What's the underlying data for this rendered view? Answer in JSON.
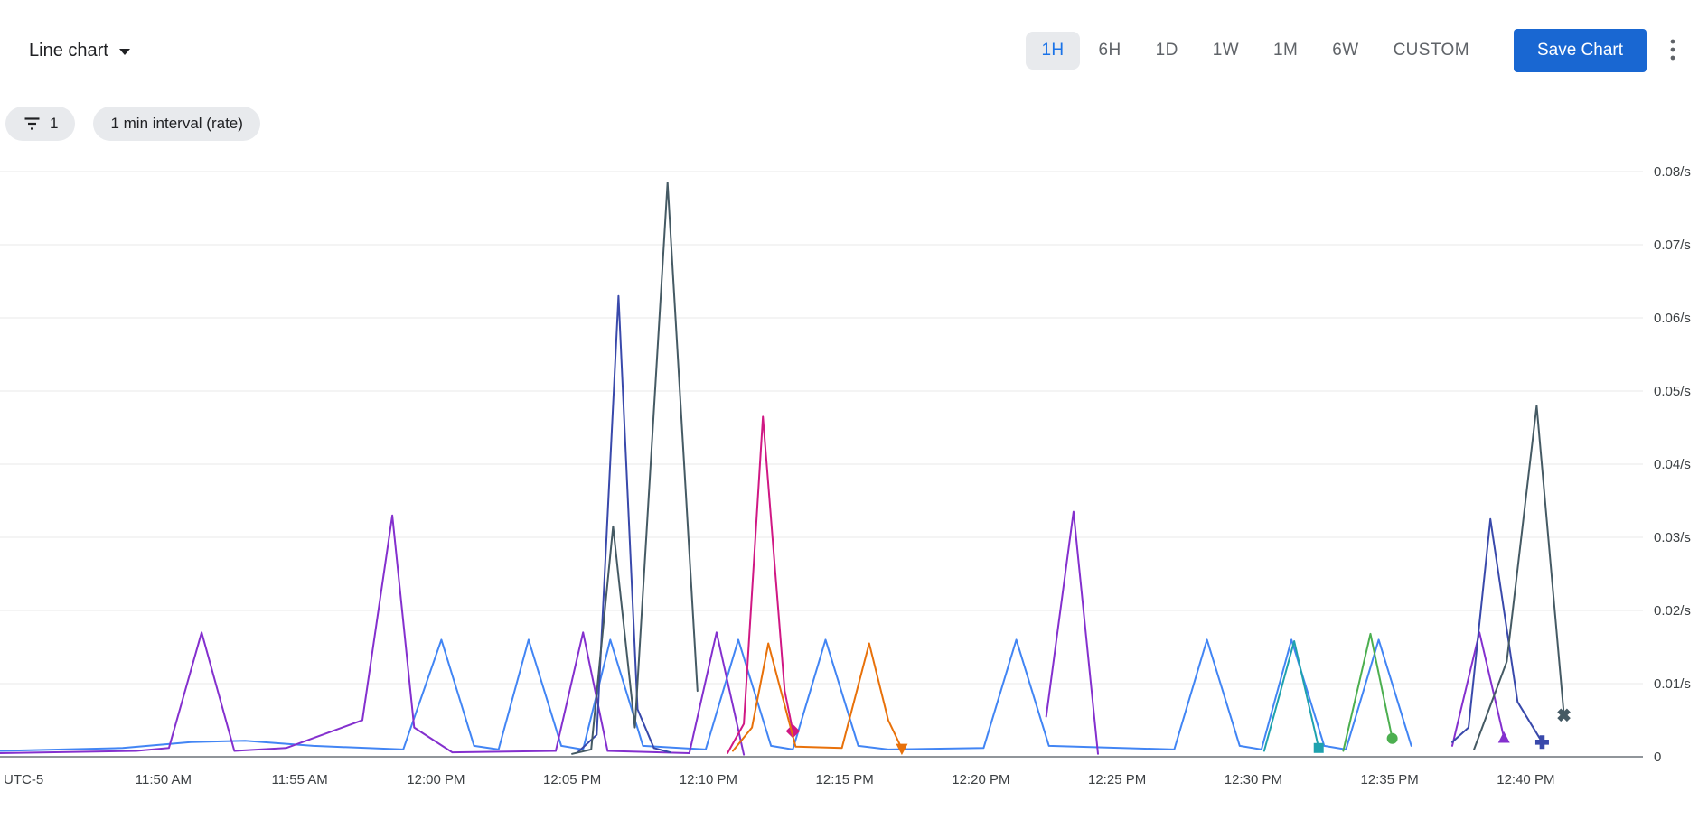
{
  "header": {
    "chart_type_label": "Line chart",
    "time_ranges": [
      "1H",
      "6H",
      "1D",
      "1W",
      "1M",
      "6W",
      "CUSTOM"
    ],
    "selected_range": "1H",
    "save_button_label": "Save Chart"
  },
  "filters": {
    "filter_count": "1",
    "interval_label": "1 min interval (rate)"
  },
  "colors": {
    "accent_blue": "#1A73E8",
    "save_button_bg": "#1967D2",
    "chip_bg": "#E8EAED",
    "grid_line": "#E8E8E8",
    "axis_line": "#80868B",
    "tick_text": "#3C4043"
  },
  "chart_data": {
    "type": "line",
    "title": "",
    "legend": "none",
    "grid": true,
    "x_axis": {
      "timezone_label": "UTC-5",
      "unit": "minutes after 11:45 AM",
      "domain_minutes": [
        -1,
        59.3
      ],
      "ticks": [
        {
          "t": 5,
          "label": "11:50 AM"
        },
        {
          "t": 10,
          "label": "11:55 AM"
        },
        {
          "t": 15,
          "label": "12:00 PM"
        },
        {
          "t": 20,
          "label": "12:05 PM"
        },
        {
          "t": 25,
          "label": "12:10 PM"
        },
        {
          "t": 30,
          "label": "12:15 PM"
        },
        {
          "t": 35,
          "label": "12:20 PM"
        },
        {
          "t": 40,
          "label": "12:25 PM"
        },
        {
          "t": 45,
          "label": "12:30 PM"
        },
        {
          "t": 50,
          "label": "12:35 PM"
        },
        {
          "t": 55,
          "label": "12:40 PM"
        }
      ]
    },
    "y_axis": {
      "unit": "/s",
      "domain": [
        0,
        0.08
      ],
      "ticks": [
        {
          "v": 0,
          "label": "0"
        },
        {
          "v": 0.01,
          "label": "0.01/s"
        },
        {
          "v": 0.02,
          "label": "0.02/s"
        },
        {
          "v": 0.03,
          "label": "0.03/s"
        },
        {
          "v": 0.04,
          "label": "0.04/s"
        },
        {
          "v": 0.05,
          "label": "0.05/s"
        },
        {
          "v": 0.06,
          "label": "0.06/s"
        },
        {
          "v": 0.07,
          "label": "0.07/s"
        },
        {
          "v": 0.08,
          "label": "0.08/s"
        }
      ]
    },
    "series": [
      {
        "name": "blue",
        "color": "#4285F4",
        "end_marker": null,
        "segments": [
          [
            [
              -1,
              0.0008
            ],
            [
              3.5,
              0.0012
            ],
            [
              6,
              0.002
            ],
            [
              8,
              0.0022
            ],
            [
              10.5,
              0.0015
            ],
            [
              13.8,
              0.001
            ],
            [
              15.2,
              0.016
            ],
            [
              16.4,
              0.0015
            ],
            [
              17.3,
              0.001
            ],
            [
              18.4,
              0.016
            ],
            [
              19.6,
              0.0015
            ],
            [
              20.4,
              0.001
            ],
            [
              21.4,
              0.016
            ],
            [
              22.6,
              0.0015
            ],
            [
              24.9,
              0.001
            ],
            [
              26.1,
              0.016
            ],
            [
              27.3,
              0.0015
            ],
            [
              28.1,
              0.001
            ],
            [
              29.3,
              0.016
            ],
            [
              30.5,
              0.0015
            ],
            [
              31.6,
              0.001
            ],
            [
              35.1,
              0.0012
            ],
            [
              36.3,
              0.016
            ],
            [
              37.5,
              0.0015
            ],
            [
              42.1,
              0.001
            ],
            [
              43.3,
              0.016
            ],
            [
              44.5,
              0.0015
            ],
            [
              45.3,
              0.001
            ],
            [
              46.4,
              0.016
            ],
            [
              47.6,
              0.0015
            ],
            [
              48.4,
              0.001
            ],
            [
              49.6,
              0.016
            ],
            [
              50.8,
              0.0015
            ]
          ]
        ]
      },
      {
        "name": "purple",
        "color": "#8430CE",
        "end_marker": "triangle-up",
        "segments": [
          [
            [
              -1,
              0.0005
            ],
            [
              4,
              0.0008
            ],
            [
              5.2,
              0.0012
            ],
            [
              6.4,
              0.017
            ],
            [
              7.6,
              0.0008
            ],
            [
              9.5,
              0.0012
            ],
            [
              12.3,
              0.005
            ],
            [
              13.4,
              0.033
            ],
            [
              14.2,
              0.004
            ],
            [
              15.6,
              0.0006
            ],
            [
              19.4,
              0.0008
            ],
            [
              20.4,
              0.017
            ],
            [
              21.3,
              0.0008
            ],
            [
              24.3,
              0.0005
            ],
            [
              25.3,
              0.017
            ],
            [
              26.3,
              0.0003
            ]
          ],
          [
            [
              37.4,
              0.0055
            ],
            [
              38.4,
              0.0335
            ],
            [
              39.3,
              0.0004
            ]
          ],
          [
            [
              52.3,
              0.0015
            ],
            [
              53.3,
              0.017
            ],
            [
              54.2,
              0.0026
            ]
          ]
        ]
      },
      {
        "name": "indigo",
        "color": "#3949AB",
        "end_marker": "plus",
        "segments": [
          [
            [
              20.2,
              0.0006
            ],
            [
              20.9,
              0.003
            ],
            [
              21.7,
              0.063
            ],
            [
              22.4,
              0.0065
            ],
            [
              23,
              0.0012
            ],
            [
              23.6,
              0.0006
            ]
          ],
          [
            [
              52.3,
              0.002
            ],
            [
              52.9,
              0.004
            ],
            [
              53.7,
              0.0325
            ],
            [
              54.7,
              0.0075
            ],
            [
              55.6,
              0.002
            ]
          ]
        ]
      },
      {
        "name": "slate-gray",
        "color": "#455A64",
        "end_marker": "x",
        "segments": [
          [
            [
              20,
              0.0004
            ],
            [
              20.7,
              0.001
            ],
            [
              21.5,
              0.0315
            ],
            [
              22.3,
              0.004
            ],
            [
              23.5,
              0.0785
            ],
            [
              24.6,
              0.009
            ]
          ],
          [
            [
              53.1,
              0.001
            ],
            [
              54.3,
              0.013
            ],
            [
              55.4,
              0.048
            ],
            [
              56.4,
              0.0057
            ]
          ]
        ]
      },
      {
        "name": "pink",
        "color": "#D01884",
        "end_marker": "diamond",
        "segments": [
          [
            [
              25.7,
              0.0005
            ],
            [
              26.3,
              0.0045
            ],
            [
              27,
              0.0465
            ],
            [
              27.8,
              0.009
            ],
            [
              28.1,
              0.0035
            ]
          ]
        ]
      },
      {
        "name": "orange",
        "color": "#E8710A",
        "end_marker": "triangle-down",
        "segments": [
          [
            [
              25.9,
              0.0008
            ],
            [
              26.6,
              0.004
            ],
            [
              27.2,
              0.0155
            ],
            [
              28.2,
              0.0014
            ],
            [
              29.9,
              0.0012
            ],
            [
              30.9,
              0.0155
            ],
            [
              31.6,
              0.005
            ],
            [
              32.1,
              0.0011
            ]
          ]
        ]
      },
      {
        "name": "teal",
        "color": "#1FA2AE",
        "end_marker": "square",
        "segments": [
          [
            [
              45.4,
              0.0008
            ],
            [
              46.5,
              0.0158
            ],
            [
              47.4,
              0.0012
            ]
          ]
        ]
      },
      {
        "name": "green",
        "color": "#4CAF50",
        "end_marker": "circle",
        "segments": [
          [
            [
              48.3,
              0.0008
            ],
            [
              49.3,
              0.0168
            ],
            [
              50.1,
              0.0025
            ]
          ]
        ]
      }
    ]
  }
}
